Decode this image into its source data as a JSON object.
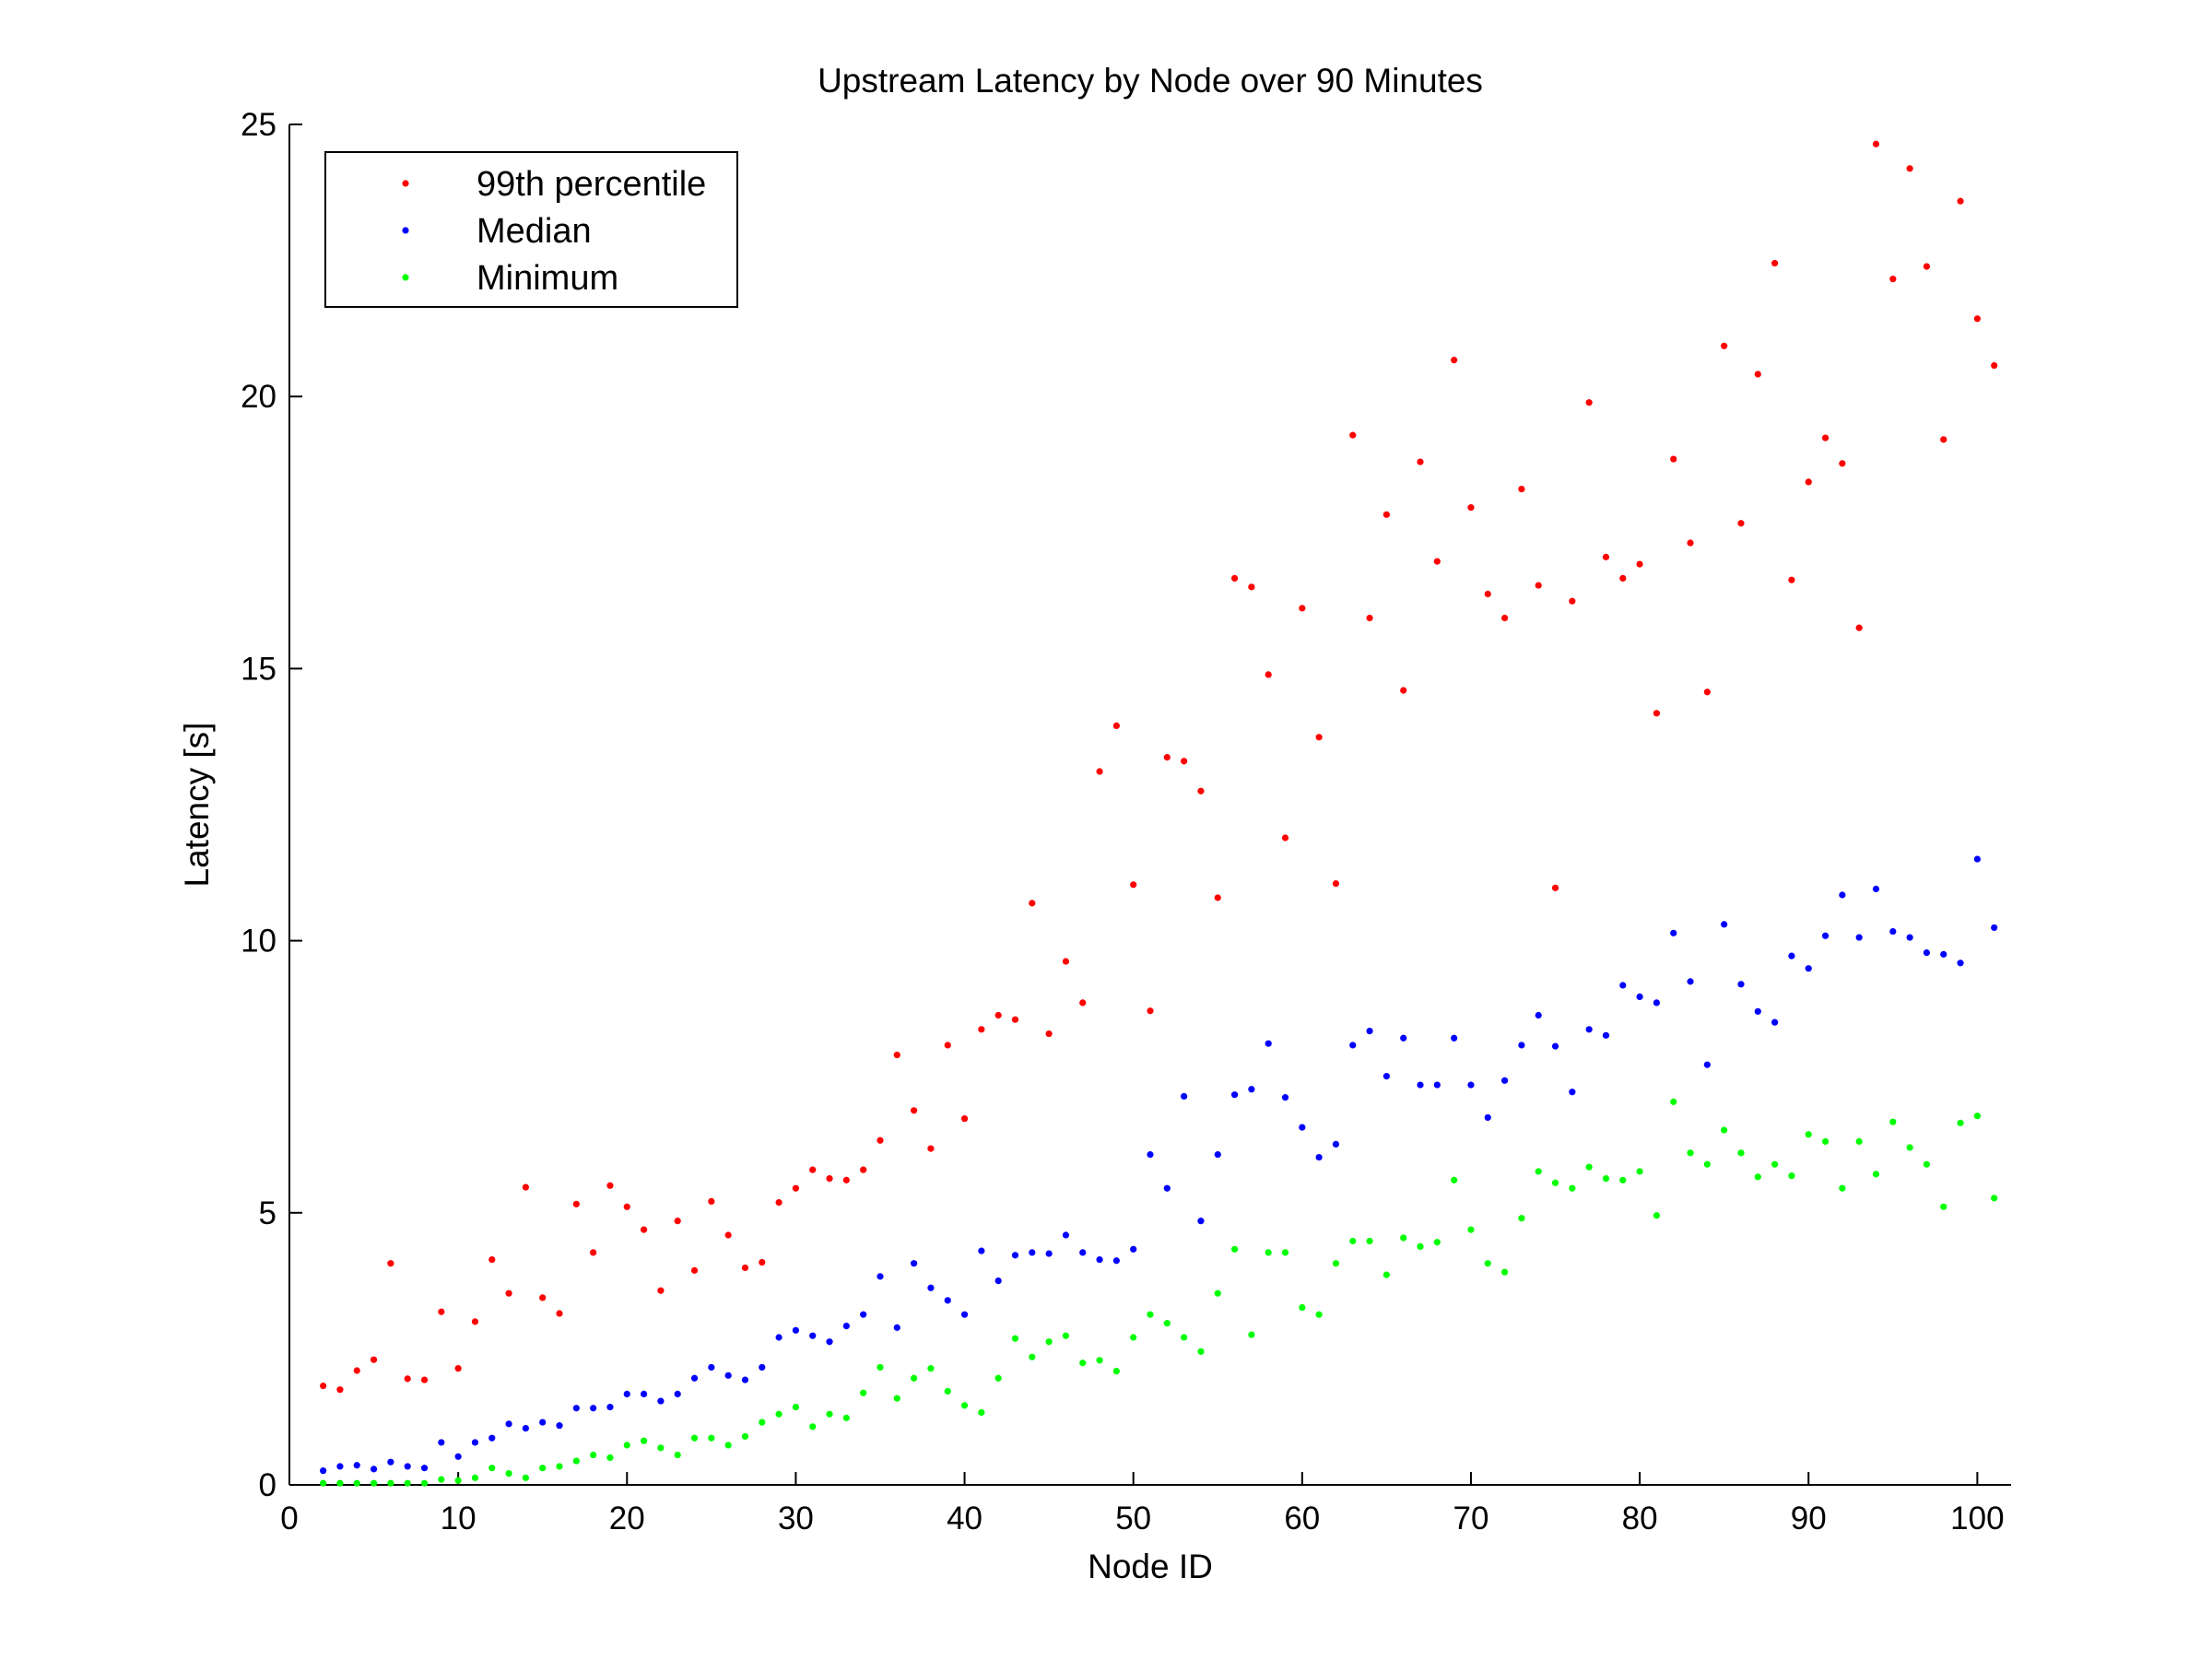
{
  "chart_data": {
    "type": "scatter",
    "title": "Upstream Latency by Node over 90 Minutes",
    "xlabel": "Node ID",
    "ylabel": "Latency [s]",
    "xlim": [
      0,
      102
    ],
    "ylim": [
      0,
      25
    ],
    "xticks": [
      0,
      10,
      20,
      30,
      40,
      50,
      60,
      70,
      80,
      90,
      100
    ],
    "yticks": [
      0,
      5,
      10,
      15,
      20,
      25
    ],
    "grid": false,
    "legend_position": "top-left",
    "x_start": 2,
    "series": [
      {
        "name": "99th percentile",
        "color": "#ff0000",
        "values": [
          1.82,
          1.75,
          2.1,
          2.3,
          4.07,
          1.95,
          1.93,
          3.18,
          2.14,
          3.0,
          4.14,
          3.52,
          5.47,
          3.44,
          3.15,
          5.16,
          4.27,
          5.5,
          5.11,
          4.69,
          3.57,
          4.85,
          3.94,
          5.21,
          4.59,
          3.99,
          4.09,
          5.19,
          5.45,
          5.79,
          5.63,
          5.6,
          5.79,
          6.33,
          7.9,
          6.88,
          6.18,
          8.08,
          6.73,
          8.37,
          8.63,
          8.55,
          10.69,
          8.29,
          9.62,
          8.86,
          13.11,
          13.95,
          11.03,
          8.71,
          13.37,
          13.3,
          12.75,
          10.79,
          16.66,
          16.5,
          14.89,
          11.89,
          16.11,
          13.74,
          11.05,
          19.29,
          15.93,
          17.83,
          14.6,
          18.8,
          16.97,
          20.67,
          17.96,
          16.37,
          15.93,
          18.3,
          16.53,
          10.97,
          16.24,
          19.89,
          17.05,
          16.66,
          16.92,
          14.18,
          18.85,
          17.31,
          14.57,
          20.93,
          17.67,
          20.41,
          22.45,
          16.63,
          18.43,
          19.24,
          18.77,
          15.75,
          24.64,
          22.16,
          24.19,
          22.39,
          19.21,
          23.59,
          21.43,
          20.57
        ]
      },
      {
        "name": "Median",
        "color": "#0000ff",
        "values": [
          0.26,
          0.34,
          0.36,
          0.29,
          0.42,
          0.34,
          0.31,
          0.78,
          0.52,
          0.78,
          0.86,
          1.12,
          1.04,
          1.15,
          1.09,
          1.41,
          1.41,
          1.43,
          1.67,
          1.67,
          1.54,
          1.67,
          1.96,
          2.16,
          2.01,
          1.93,
          2.16,
          2.71,
          2.84,
          2.74,
          2.63,
          2.92,
          3.13,
          3.83,
          2.89,
          4.07,
          3.62,
          3.39,
          3.13,
          4.3,
          3.75,
          4.22,
          4.27,
          4.25,
          4.59,
          4.27,
          4.14,
          4.12,
          4.33,
          6.07,
          5.45,
          7.14,
          4.85,
          6.07,
          7.17,
          7.27,
          8.11,
          7.12,
          6.57,
          6.02,
          6.26,
          8.08,
          8.34,
          7.51,
          8.21,
          7.35,
          7.35,
          8.21,
          7.35,
          6.75,
          7.43,
          8.08,
          8.63,
          8.06,
          7.22,
          8.37,
          8.26,
          9.18,
          8.97,
          8.86,
          10.14,
          9.25,
          7.72,
          10.3,
          9.2,
          8.7,
          8.5,
          9.72,
          9.49,
          10.09,
          10.84,
          10.06,
          10.95,
          10.17,
          10.06,
          9.78,
          9.75,
          9.59,
          11.5,
          10.24
        ]
      },
      {
        "name": "Minimum",
        "color": "#00ff00",
        "values": [
          0.03,
          0.03,
          0.03,
          0.03,
          0.03,
          0.03,
          0.03,
          0.1,
          0.08,
          0.13,
          0.31,
          0.21,
          0.13,
          0.31,
          0.34,
          0.44,
          0.55,
          0.5,
          0.73,
          0.81,
          0.68,
          0.55,
          0.86,
          0.86,
          0.73,
          0.89,
          1.15,
          1.3,
          1.43,
          1.07,
          1.3,
          1.23,
          1.69,
          2.16,
          1.59,
          1.96,
          2.14,
          1.72,
          1.46,
          1.33,
          1.96,
          2.69,
          2.35,
          2.63,
          2.74,
          2.24,
          2.29,
          2.09,
          2.71,
          3.13,
          2.97,
          2.71,
          2.45,
          3.52,
          4.33,
          2.76,
          4.27,
          4.27,
          3.26,
          3.13,
          4.07,
          4.48,
          4.48,
          3.86,
          4.54,
          4.38,
          4.46,
          5.6,
          4.69,
          4.07,
          3.91,
          4.9,
          5.76,
          5.55,
          5.45,
          5.84,
          5.63,
          5.6,
          5.76,
          4.95,
          7.04,
          6.1,
          5.89,
          6.52,
          6.1,
          5.66,
          5.89,
          5.68,
          6.44,
          6.31,
          5.45,
          6.31,
          5.71,
          6.67,
          6.2,
          5.89,
          5.11,
          6.65,
          6.78,
          5.27
        ]
      }
    ]
  }
}
